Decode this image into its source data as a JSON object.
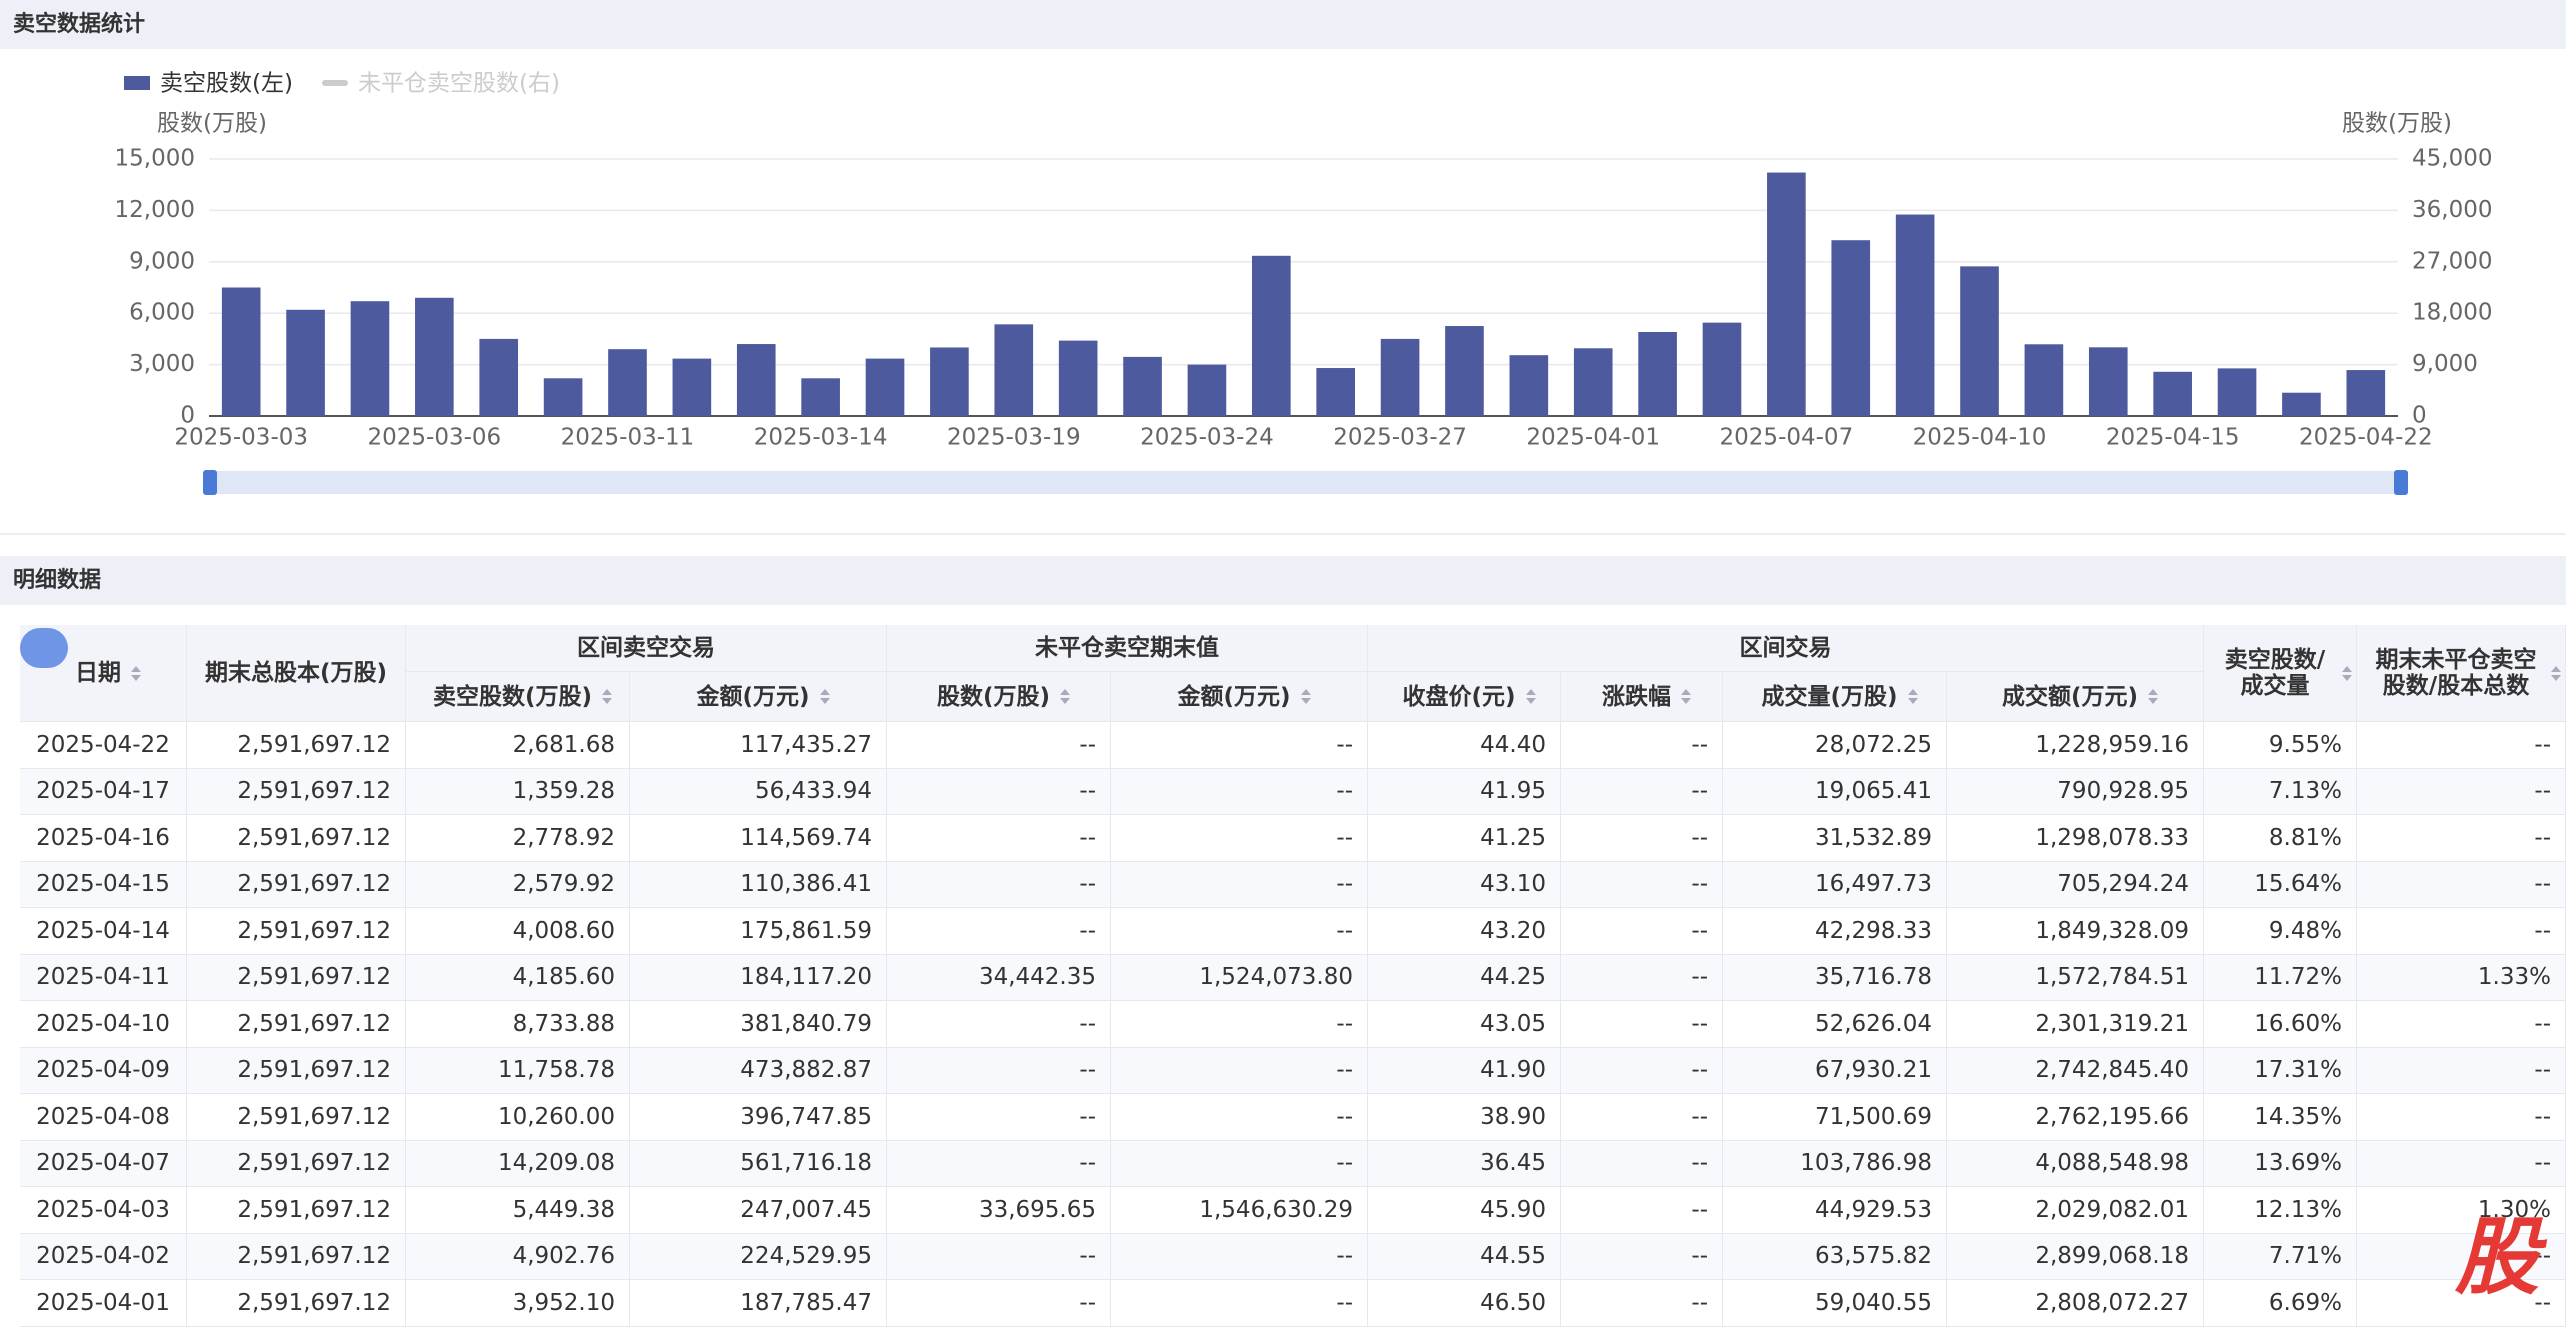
{
  "chart_data": {
    "type": "bar",
    "title": "卖空数据统计",
    "categories": [
      "2025-03-03",
      null,
      null,
      "2025-03-06",
      null,
      null,
      "2025-03-11",
      null,
      null,
      "2025-03-14",
      null,
      null,
      "2025-03-19",
      null,
      null,
      "2025-03-24",
      null,
      null,
      "2025-03-27",
      null,
      null,
      "2025-04-01",
      null,
      null,
      "2025-04-07",
      null,
      null,
      "2025-04-10",
      null,
      null,
      "2025-04-15",
      null,
      null,
      "2025-04-22"
    ],
    "series": [
      {
        "name": "卖空股数(左)",
        "color": "#4e5a9e",
        "values": [
          7500,
          6200,
          6700,
          6900,
          4500,
          2200,
          3900,
          3350,
          4200,
          2200,
          3350,
          4000,
          5350,
          4400,
          3450,
          3000,
          9350,
          2800,
          4500,
          5250,
          3550,
          3952.1,
          4902.76,
          5449.38,
          14209.08,
          10260.0,
          11758.78,
          8733.88,
          4185.6,
          4008.6,
          2579.92,
          2778.92,
          1359.28,
          2681.68
        ]
      },
      {
        "name": "未平仓卖空股数(右)",
        "color": "#cccccc",
        "axis": "y2",
        "visible": false,
        "values": [
          null,
          null,
          null,
          null,
          null,
          null,
          null,
          null,
          null,
          null,
          null,
          null,
          null,
          null,
          null,
          null,
          null,
          null,
          null,
          null,
          null,
          null,
          null,
          null,
          null,
          null,
          null,
          null,
          null,
          null,
          null,
          null,
          null,
          null
        ]
      }
    ],
    "y_label": "股数(万股)",
    "y2_label": "股数(万股)",
    "ylim": [
      0,
      15000
    ],
    "yticks": [
      0,
      {
        "value": 3000,
        "label": "3,000"
      },
      {
        "value": 6000,
        "label": "6,000"
      },
      {
        "value": 9000,
        "label": "9,000"
      },
      {
        "value": 12000,
        "label": "12,000"
      },
      {
        "value": 15000,
        "label": "15,000"
      }
    ],
    "y2lim": [
      0,
      45000
    ],
    "y2ticks": [
      0,
      {
        "value": 9000,
        "label": "9,000"
      },
      {
        "value": 18000,
        "label": "18,000"
      },
      {
        "value": 27000,
        "label": "27,000"
      },
      {
        "value": 36000,
        "label": "36,000"
      },
      {
        "value": 45000,
        "label": "45,000"
      }
    ],
    "grid": true
  },
  "table": {
    "title": "明细数据",
    "header_top": [
      "日期",
      "期末总股本(万股)",
      "区间卖空交易",
      "未平仓卖空期末值",
      "区间交易",
      "卖空股数/成交量",
      "期末未平仓卖空股数/股本总数"
    ],
    "header_sub": [
      "卖空股数(万股)",
      "金额(万元)",
      "股数(万股)",
      "金额(万元)",
      "收盘价(元)",
      "涨跌幅",
      "成交量(万股)",
      "成交额(万元)"
    ],
    "rows": [
      [
        "2025-04-22",
        "2,591,697.12",
        "2,681.68",
        "117,435.27",
        "--",
        "--",
        "44.40",
        "--",
        "28,072.25",
        "1,228,959.16",
        "9.55%",
        "--"
      ],
      [
        "2025-04-17",
        "2,591,697.12",
        "1,359.28",
        "56,433.94",
        "--",
        "--",
        "41.95",
        "--",
        "19,065.41",
        "790,928.95",
        "7.13%",
        "--"
      ],
      [
        "2025-04-16",
        "2,591,697.12",
        "2,778.92",
        "114,569.74",
        "--",
        "--",
        "41.25",
        "--",
        "31,532.89",
        "1,298,078.33",
        "8.81%",
        "--"
      ],
      [
        "2025-04-15",
        "2,591,697.12",
        "2,579.92",
        "110,386.41",
        "--",
        "--",
        "43.10",
        "--",
        "16,497.73",
        "705,294.24",
        "15.64%",
        "--"
      ],
      [
        "2025-04-14",
        "2,591,697.12",
        "4,008.60",
        "175,861.59",
        "--",
        "--",
        "43.20",
        "--",
        "42,298.33",
        "1,849,328.09",
        "9.48%",
        "--"
      ],
      [
        "2025-04-11",
        "2,591,697.12",
        "4,185.60",
        "184,117.20",
        "34,442.35",
        "1,524,073.80",
        "44.25",
        "--",
        "35,716.78",
        "1,572,784.51",
        "11.72%",
        "1.33%"
      ],
      [
        "2025-04-10",
        "2,591,697.12",
        "8,733.88",
        "381,840.79",
        "--",
        "--",
        "43.05",
        "--",
        "52,626.04",
        "2,301,319.21",
        "16.60%",
        "--"
      ],
      [
        "2025-04-09",
        "2,591,697.12",
        "11,758.78",
        "473,882.87",
        "--",
        "--",
        "41.90",
        "--",
        "67,930.21",
        "2,742,845.40",
        "17.31%",
        "--"
      ],
      [
        "2025-04-08",
        "2,591,697.12",
        "10,260.00",
        "396,747.85",
        "--",
        "--",
        "38.90",
        "--",
        "71,500.69",
        "2,762,195.66",
        "14.35%",
        "--"
      ],
      [
        "2025-04-07",
        "2,591,697.12",
        "14,209.08",
        "561,716.18",
        "--",
        "--",
        "36.45",
        "--",
        "103,786.98",
        "4,088,548.98",
        "13.69%",
        "--"
      ],
      [
        "2025-04-03",
        "2,591,697.12",
        "5,449.38",
        "247,007.45",
        "33,695.65",
        "1,546,630.29",
        "45.90",
        "--",
        "44,929.53",
        "2,029,082.01",
        "12.13%",
        "1.30%"
      ],
      [
        "2025-04-02",
        "2,591,697.12",
        "4,902.76",
        "224,529.95",
        "--",
        "--",
        "44.55",
        "--",
        "63,575.82",
        "2,899,068.18",
        "7.71%",
        "--"
      ],
      [
        "2025-04-01",
        "2,591,697.12",
        "3,952.10",
        "187,785.47",
        "--",
        "--",
        "46.50",
        "--",
        "59,040.55",
        "2,808,072.27",
        "6.69%",
        "--"
      ]
    ]
  },
  "watermark": "股"
}
